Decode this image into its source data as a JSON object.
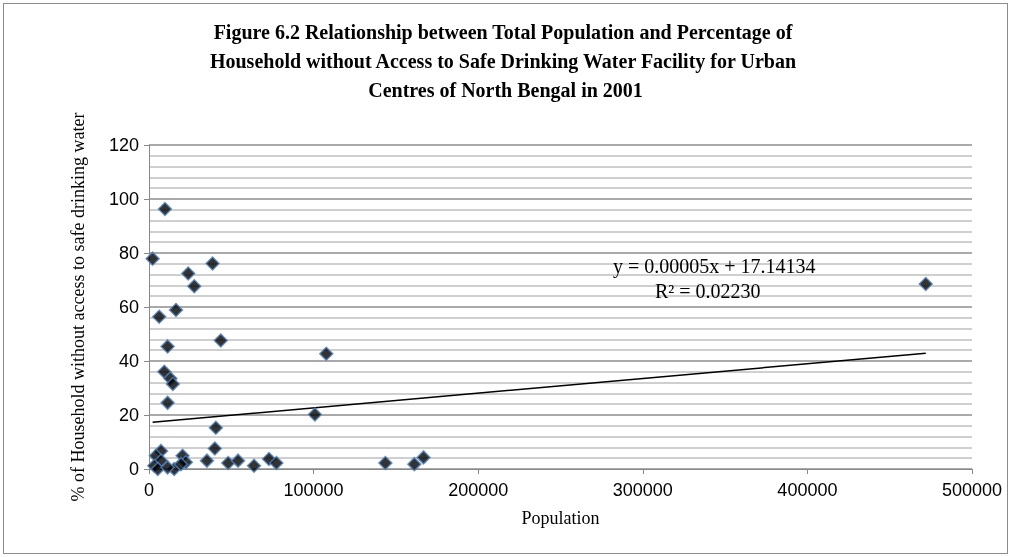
{
  "chart_data": {
    "type": "scatter",
    "title": "Figure 6.2 Relationship between Total Population and Percentage of Household without Access to Safe Drinking Water Facility for Urban Centres of North Bengal in 2001",
    "xlabel": "Population",
    "ylabel": "% of Household without access to safe drinking water",
    "series": [
      {
        "color": "#000000",
        "x": [
          9700,
          2200,
          38600,
          23800,
          27500,
          16400,
          6200,
          11300,
          43600,
          107700,
          9300,
          13000,
          14500,
          11300,
          100800,
          40600,
          40000,
          7300,
          4200,
          7300,
          3200,
          5300,
          15300,
          11300,
          20400,
          22400,
          19400,
          35200,
          48100,
          54100,
          63800,
          72900,
          77400,
          143600,
          161200,
          166800,
          471900
        ],
        "values": [
          96.3,
          77.9,
          76.1,
          72.4,
          67.7,
          58.9,
          56.4,
          45.4,
          47.6,
          42.7,
          36,
          33.5,
          31.5,
          24.5,
          20.2,
          15.3,
          7.6,
          6.7,
          4.9,
          3.1,
          1.2,
          0,
          0,
          0.6,
          4.9,
          2.5,
          1.8,
          3.1,
          2.2,
          3.1,
          1.2,
          3.7,
          2.2,
          2.2,
          1.8,
          4.3,
          68.5
        ]
      },
      {
        "type": "line",
        "color": "#000000",
        "x": [
          2200,
          471900
        ],
        "values": [
          17.3,
          42.9
        ],
        "marker": "none"
      }
    ],
    "annotations": [
      "y = 0.00005x + 17.14134",
      "R² = 0.02230"
    ],
    "xlim": [
      0,
      500000
    ],
    "xticks": [
      0,
      100000,
      200000,
      300000,
      400000,
      500000
    ],
    "ylim": [
      0,
      120
    ],
    "yticks": [
      0,
      20,
      40,
      60,
      80,
      100,
      120
    ],
    "grid": "y",
    "marker": "diamond"
  }
}
